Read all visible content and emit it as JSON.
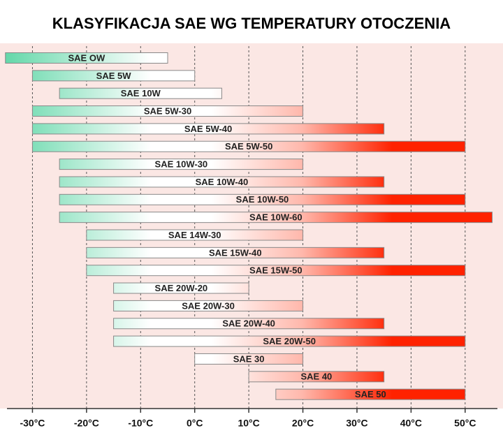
{
  "chart_data": {
    "type": "range",
    "title": "KLASYFIKACJA  SAE  WG TEMPERATURY OTOCZENIA",
    "categories": [
      "SAE OW",
      "SAE 5W",
      "SAE 10W",
      "SAE 5W-30",
      "SAE 5W-40",
      "SAE 5W-50",
      "SAE 10W-30",
      "SAE 10W-40",
      "SAE 10W-50",
      "SAE 10W-60",
      "SAE 14W-30",
      "SAE 15W-40",
      "SAE 15W-50",
      "SAE 20W-20",
      "SAE 20W-30",
      "SAE 20W-40",
      "SAE 20W-50",
      "SAE 30",
      "SAE 40",
      "SAE 50"
    ],
    "low": [
      -35,
      -30,
      -25,
      -30,
      -30,
      -30,
      -25,
      -25,
      -25,
      -25,
      -20,
      -20,
      -20,
      -15,
      -15,
      -15,
      -15,
      0,
      10,
      15
    ],
    "high": [
      -5,
      0,
      5,
      20,
      35,
      50,
      20,
      35,
      50,
      55,
      20,
      35,
      50,
      10,
      20,
      35,
      50,
      20,
      35,
      50
    ],
    "colors": {
      "cold": "#5ed6a6",
      "hot": "#ff2200"
    },
    "xlim": [
      -36,
      57
    ],
    "xticks": [
      {
        "value": -30,
        "label": "-30°C"
      },
      {
        "value": -20,
        "label": "-20°C"
      },
      {
        "value": -10,
        "label": "-10°C"
      },
      {
        "value": 0,
        "label": "0°C"
      },
      {
        "value": 10,
        "label": "10°C"
      },
      {
        "value": 20,
        "label": "20°C"
      },
      {
        "value": 30,
        "label": "30°C"
      },
      {
        "value": 40,
        "label": "40°C"
      },
      {
        "value": 50,
        "label": "50°C"
      }
    ],
    "grid": true
  }
}
